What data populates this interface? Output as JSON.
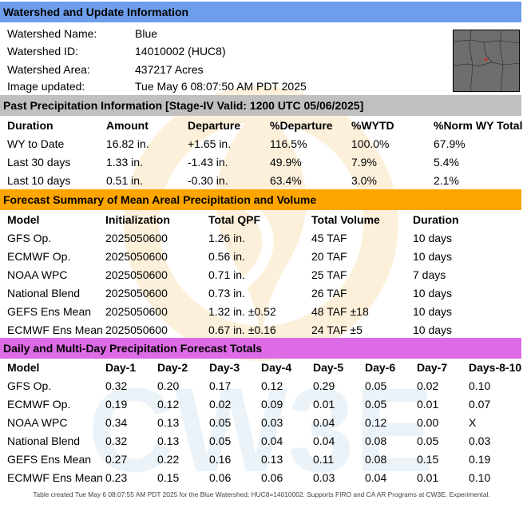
{
  "watershed": {
    "header": "Watershed and Update Information",
    "rows": [
      {
        "label": "Watershed Name:",
        "value": "Blue"
      },
      {
        "label": "Watershed ID:",
        "value": "14010002 (HUC8)"
      },
      {
        "label": "Watershed Area:",
        "value": "437217 Acres"
      },
      {
        "label": "Image updated:",
        "value": "Tue May  6 08:07:50 AM PDT 2025"
      }
    ]
  },
  "past_precip": {
    "header": "Past Precipitation Information [Stage-IV Valid: 1200 UTC 05/06/2025]",
    "columns": [
      "Duration",
      "Amount",
      "Departure",
      "%Departure",
      "%WYTD",
      "%Norm WY Total"
    ],
    "rows": [
      [
        "WY to Date",
        "16.82 in.",
        "+1.65 in.",
        "116.5%",
        "100.0%",
        "67.9%"
      ],
      [
        "Last 30 days",
        "1.33 in.",
        "-1.43 in.",
        "49.9%",
        "7.9%",
        "5.4%"
      ],
      [
        "Last 10 days",
        "0.51 in.",
        "-0.30 in.",
        "63.4%",
        "3.0%",
        "2.1%"
      ]
    ]
  },
  "forecast_summary": {
    "header": "Forecast Summary of Mean Areal Precipitation and Volume",
    "columns": [
      "Model",
      "Initialization",
      "Total QPF",
      "Total Volume",
      "Duration"
    ],
    "rows": [
      [
        "GFS Op.",
        "2025050600",
        "1.26 in.",
        "45 TAF",
        "10 days"
      ],
      [
        "ECMWF Op.",
        "2025050600",
        "0.56 in.",
        "20 TAF",
        "10 days"
      ],
      [
        "NOAA WPC",
        "2025050600",
        "0.71 in.",
        "25 TAF",
        "7 days"
      ],
      [
        "National Blend",
        "2025050600",
        "0.73 in.",
        "26 TAF",
        "10 days"
      ],
      [
        "GEFS Ens Mean",
        "2025050600",
        "1.32 in. ±0.52",
        "48 TAF ±18",
        "10 days"
      ],
      [
        "ECMWF Ens Mean",
        "2025050600",
        "0.67 in. ±0.16",
        "24 TAF ±5",
        "10 days"
      ]
    ]
  },
  "daily_totals": {
    "header": "Daily and Multi-Day Precipitation Forecast Totals",
    "columns": [
      "Model",
      "Day-1",
      "Day-2",
      "Day-3",
      "Day-4",
      "Day-5",
      "Day-6",
      "Day-7",
      "Days-8-10"
    ],
    "rows": [
      [
        "GFS Op.",
        "0.32",
        "0.20",
        "0.17",
        "0.12",
        "0.29",
        "0.05",
        "0.02",
        "0.10"
      ],
      [
        "ECMWF Op.",
        "0.19",
        "0.12",
        "0.02",
        "0.09",
        "0.01",
        "0.05",
        "0.01",
        "0.07"
      ],
      [
        "NOAA WPC",
        "0.34",
        "0.13",
        "0.05",
        "0.03",
        "0.04",
        "0.12",
        "0.00",
        "X"
      ],
      [
        "National Blend",
        "0.32",
        "0.13",
        "0.05",
        "0.04",
        "0.04",
        "0.08",
        "0.05",
        "0.03"
      ],
      [
        "GEFS Ens Mean",
        "0.27",
        "0.22",
        "0.16",
        "0.13",
        "0.11",
        "0.08",
        "0.15",
        "0.19"
      ],
      [
        "ECMWF Ens Mean",
        "0.23",
        "0.15",
        "0.06",
        "0.06",
        "0.03",
        "0.04",
        "0.01",
        "0.10"
      ]
    ]
  },
  "footer": "Table created Tue May  6 08:07:55 AM PDT 2025 for the Blue Watershed; HUC8=14010002. Supports FIRO and CA AR Programs at CW3E. Experimental.",
  "watermark": {
    "text": "CW3E",
    "icon": "cw3e-logo-icon"
  },
  "colors": {
    "header_blue": "#6d9eeb",
    "header_gray": "#c0c0c0",
    "header_orange": "#ffa500",
    "header_magenta": "#dd6be6",
    "map_bg": "#6e6e6e",
    "map_marker": "#c0392b"
  }
}
